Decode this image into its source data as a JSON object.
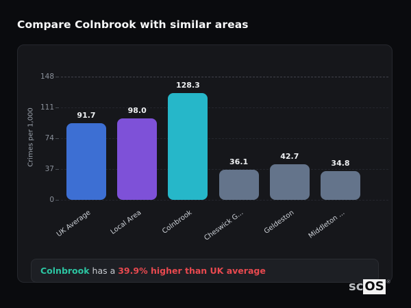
{
  "page": {
    "title": "Compare Colnbrook with similar areas"
  },
  "chart_data": {
    "type": "bar",
    "categories": [
      "UK Average",
      "Local Area",
      "Colnbrook",
      "Cheswick G...",
      "Geldeston",
      "Middleton ..."
    ],
    "values": [
      91.7,
      98.0,
      128.3,
      36.1,
      42.7,
      34.8
    ],
    "value_labels": [
      "91.7",
      "98.0",
      "128.3",
      "36.1",
      "42.7",
      "34.8"
    ],
    "bar_colors": [
      "#3d6fd3",
      "#7e51d8",
      "#26b7c9",
      "#64748b",
      "#64748b",
      "#64748b"
    ],
    "title": "",
    "xlabel": "",
    "ylabel": "Crimes per 1,000",
    "yticks": [
      0,
      37,
      74,
      111,
      148
    ],
    "ylim": [
      0,
      148
    ],
    "grid": "dashed-horizontal",
    "legend_position": "none"
  },
  "note": {
    "area": "Colnbrook",
    "middle": " has a ",
    "stat": "39.9% higher than UK average",
    "area_color": "#2cc5a2",
    "stat_color": "#e8494f"
  },
  "logo": {
    "prefix": "sc",
    "suffix": "OS",
    "registered": "®"
  }
}
